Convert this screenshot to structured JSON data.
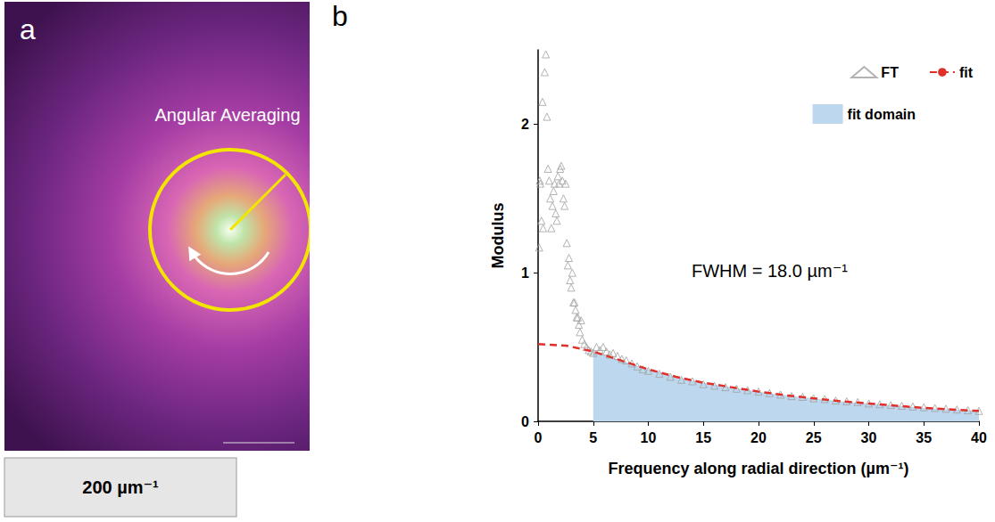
{
  "chart_data": {
    "type": "line",
    "panel_label": "b",
    "x_label": "Frequency along radial direction (µm⁻¹)",
    "y_label": "Modulus",
    "annotations": [
      "FWHM = 18.0 µm⁻¹"
    ],
    "xlim": [
      0,
      40
    ],
    "ylim": [
      0,
      2.5
    ],
    "xticks": [
      0,
      5,
      10,
      15,
      20,
      25,
      30,
      35,
      40
    ],
    "yticks": [
      0,
      1,
      2
    ],
    "grid": false,
    "legend": "upper right",
    "series": [
      {
        "name": "fit domain",
        "type": "area",
        "color": "#bdd7ee",
        "x": [
          5,
          7.5,
          10,
          12.5,
          15,
          17.5,
          20,
          22.5,
          25,
          27.5,
          30,
          32.5,
          35,
          37.5,
          40
        ],
        "values": [
          0.47,
          0.41,
          0.35,
          0.3,
          0.26,
          0.23,
          0.2,
          0.175,
          0.155,
          0.135,
          0.12,
          0.105,
          0.09,
          0.08,
          0.07
        ]
      },
      {
        "name": "FT",
        "type": "scatter",
        "color": "#a0a0a0",
        "marker": "triangle",
        "x": [
          0.1,
          0.15,
          0.2,
          0.3,
          0.4,
          0.45,
          0.6,
          0.7,
          0.8,
          0.9,
          1.0,
          1.1,
          1.2,
          1.3,
          1.4,
          1.5,
          1.6,
          1.7,
          1.8,
          1.9,
          2.0,
          2.1,
          2.2,
          2.3,
          2.4,
          2.5,
          2.6,
          2.7,
          2.8,
          2.9,
          3.0,
          3.1,
          3.2,
          3.3,
          3.4,
          3.5,
          3.6,
          3.7,
          3.8,
          3.9,
          4.0,
          4.2,
          4.4,
          4.6,
          4.8,
          5.0,
          5.3,
          5.6,
          5.9,
          6.2,
          6.5,
          6.8,
          7.2,
          7.6,
          8,
          8.5,
          9,
          9.5,
          10,
          11,
          12,
          13,
          14,
          15,
          16,
          17,
          18,
          19,
          20,
          21,
          22,
          23,
          24,
          25,
          26,
          27,
          28,
          29,
          30,
          31,
          32,
          33,
          34,
          35,
          36,
          37,
          38,
          39,
          40
        ],
        "values": [
          1.17,
          1.62,
          1.6,
          1.35,
          2.15,
          1.3,
          2.35,
          2.47,
          2.05,
          1.7,
          1.62,
          1.5,
          1.3,
          1.45,
          1.55,
          1.6,
          1.4,
          1.35,
          1.65,
          1.6,
          1.7,
          1.72,
          1.62,
          1.5,
          1.45,
          1.6,
          1.2,
          1.05,
          1.1,
          0.95,
          0.9,
          1.0,
          0.8,
          0.8,
          0.75,
          0.7,
          0.7,
          0.65,
          0.6,
          0.68,
          0.55,
          0.52,
          0.5,
          0.48,
          0.47,
          0.46,
          0.5,
          0.48,
          0.5,
          0.47,
          0.45,
          0.46,
          0.44,
          0.42,
          0.41,
          0.39,
          0.37,
          0.35,
          0.34,
          0.32,
          0.3,
          0.28,
          0.27,
          0.25,
          0.24,
          0.23,
          0.22,
          0.21,
          0.2,
          0.19,
          0.18,
          0.17,
          0.165,
          0.155,
          0.15,
          0.14,
          0.135,
          0.13,
          0.12,
          0.115,
          0.11,
          0.105,
          0.1,
          0.095,
          0.09,
          0.085,
          0.08,
          0.075,
          0.07
        ]
      },
      {
        "name": "fit",
        "type": "line",
        "color": "#e0302a",
        "line_style": "dashed",
        "x": [
          0,
          2.5,
          5,
          7.5,
          10,
          12.5,
          15,
          17.5,
          20,
          22.5,
          25,
          27.5,
          30,
          32.5,
          35,
          37.5,
          40
        ],
        "values": [
          0.52,
          0.51,
          0.47,
          0.41,
          0.35,
          0.3,
          0.26,
          0.23,
          0.2,
          0.175,
          0.155,
          0.135,
          0.12,
          0.105,
          0.09,
          0.08,
          0.07
        ]
      }
    ]
  },
  "image_panel": {
    "panel_label": "a",
    "annotation": "Angular Averaging",
    "scale_bar": "200 µm⁻¹"
  }
}
